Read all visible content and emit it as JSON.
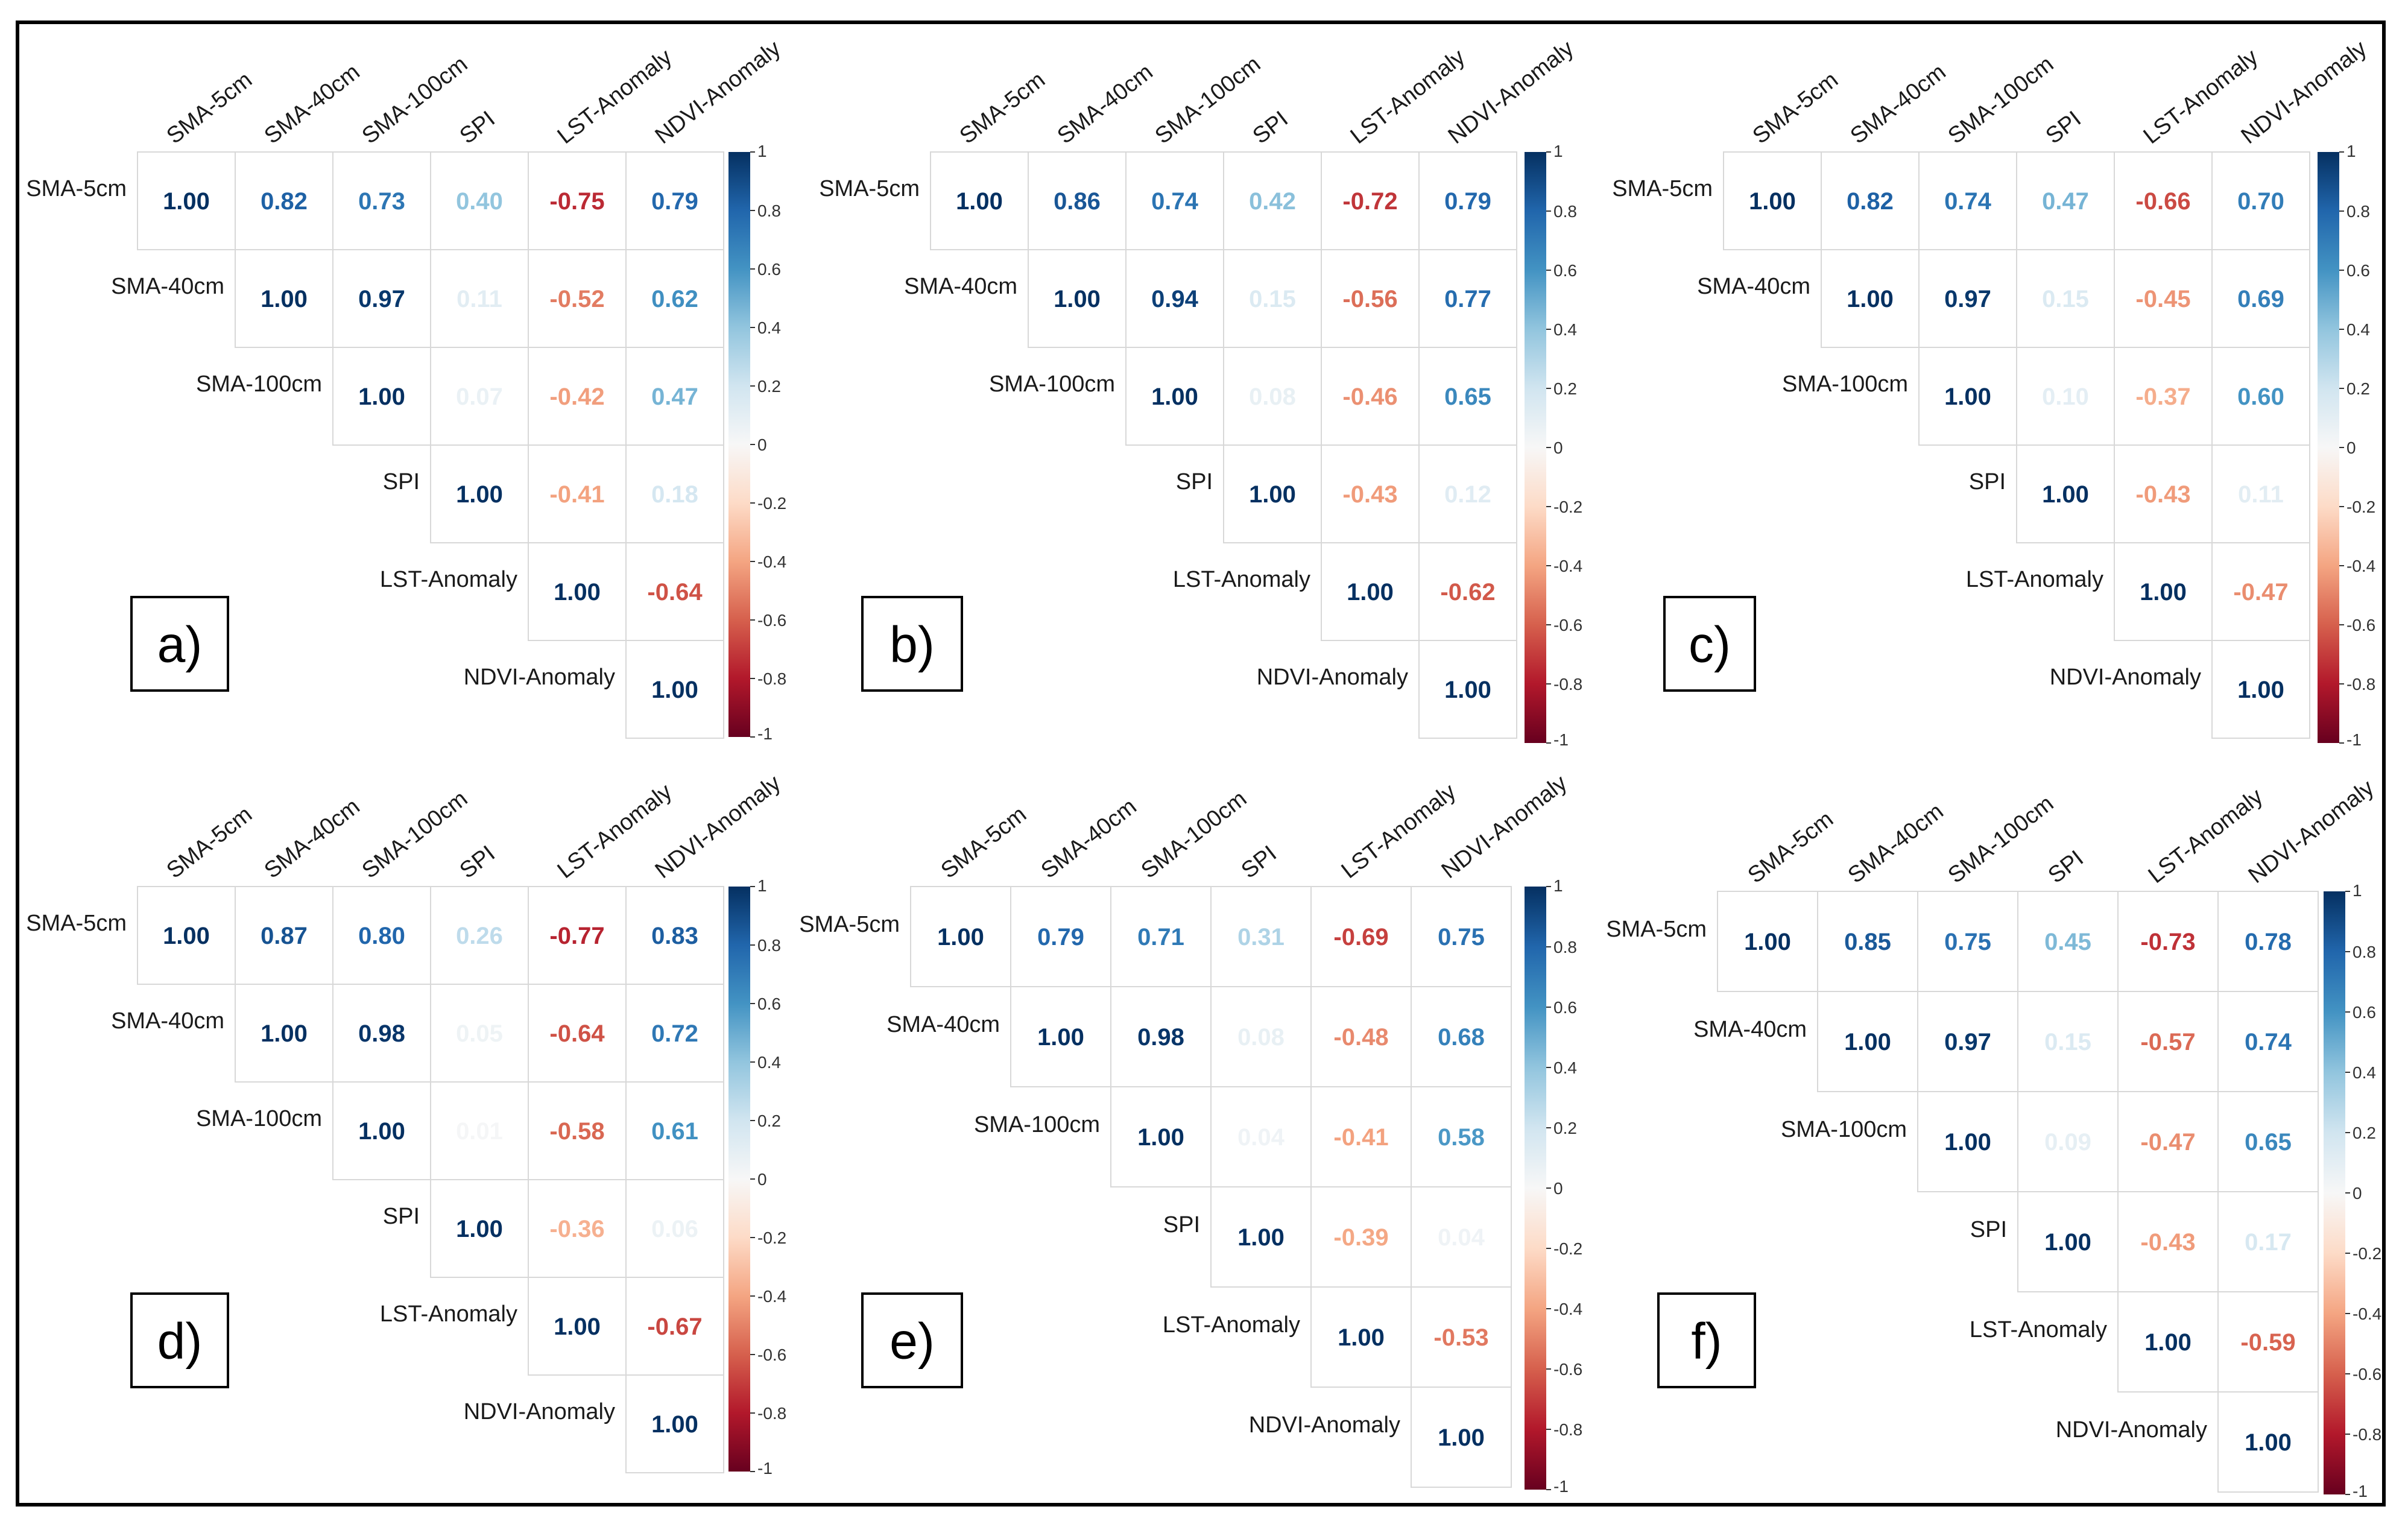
{
  "chart_data": [
    {
      "type": "heatmap",
      "panel": "a)",
      "variables": [
        "SMA-5cm",
        "SMA-40cm",
        "SMA-100cm",
        "SPI",
        "LST-Anomaly",
        "NDVI-Anomaly"
      ],
      "values": [
        [
          "1.00",
          "0.82",
          "0.73",
          "0.40",
          "-0.75",
          "0.79"
        ],
        [
          "1.00",
          "0.97",
          "0.11",
          "-0.52",
          "0.62"
        ],
        [
          "1.00",
          "0.07",
          "-0.42",
          "0.47"
        ],
        [
          "1.00",
          "-0.41",
          "0.18"
        ],
        [
          "1.00",
          "-0.64"
        ],
        [
          "1.00"
        ]
      ],
      "colorbar": {
        "range": [
          -1,
          1
        ],
        "ticks": [
          "1",
          "0.8",
          "0.6",
          "0.4",
          "0.2",
          "0",
          "-0.2",
          "-0.4",
          "-0.6",
          "-0.8",
          "-1"
        ]
      }
    },
    {
      "type": "heatmap",
      "panel": "b)",
      "variables": [
        "SMA-5cm",
        "SMA-40cm",
        "SMA-100cm",
        "SPI",
        "LST-Anomaly",
        "NDVI-Anomaly"
      ],
      "values": [
        [
          "1.00",
          "0.86",
          "0.74",
          "0.42",
          "-0.72",
          "0.79"
        ],
        [
          "1.00",
          "0.94",
          "0.15",
          "-0.56",
          "0.77"
        ],
        [
          "1.00",
          "0.08",
          "-0.46",
          "0.65"
        ],
        [
          "1.00",
          "-0.43",
          "0.12"
        ],
        [
          "1.00",
          "-0.62"
        ],
        [
          "1.00"
        ]
      ],
      "colorbar": {
        "range": [
          -1,
          1
        ],
        "ticks": [
          "1",
          "0.8",
          "0.6",
          "0.4",
          "0.2",
          "0",
          "-0.2",
          "-0.4",
          "-0.6",
          "-0.8",
          "-1"
        ]
      }
    },
    {
      "type": "heatmap",
      "panel": "c)",
      "variables": [
        "SMA-5cm",
        "SMA-40cm",
        "SMA-100cm",
        "SPI",
        "LST-Anomaly",
        "NDVI-Anomaly"
      ],
      "values": [
        [
          "1.00",
          "0.82",
          "0.74",
          "0.47",
          "-0.66",
          "0.70"
        ],
        [
          "1.00",
          "0.97",
          "0.15",
          "-0.45",
          "0.69"
        ],
        [
          "1.00",
          "0.10",
          "-0.37",
          "0.60"
        ],
        [
          "1.00",
          "-0.43",
          "0.11"
        ],
        [
          "1.00",
          "-0.47"
        ],
        [
          "1.00"
        ]
      ],
      "colorbar": {
        "range": [
          -1,
          1
        ],
        "ticks": [
          "1",
          "0.8",
          "0.6",
          "0.4",
          "0.2",
          "0",
          "-0.2",
          "-0.4",
          "-0.6",
          "-0.8",
          "-1"
        ]
      }
    },
    {
      "type": "heatmap",
      "panel": "d)",
      "variables": [
        "SMA-5cm",
        "SMA-40cm",
        "SMA-100cm",
        "SPI",
        "LST-Anomaly",
        "NDVI-Anomaly"
      ],
      "values": [
        [
          "1.00",
          "0.87",
          "0.80",
          "0.26",
          "-0.77",
          "0.83"
        ],
        [
          "1.00",
          "0.98",
          "0.05",
          "-0.64",
          "0.72"
        ],
        [
          "1.00",
          "0.01",
          "-0.58",
          "0.61"
        ],
        [
          "1.00",
          "-0.36",
          "0.06"
        ],
        [
          "1.00",
          "-0.67"
        ],
        [
          "1.00"
        ]
      ],
      "colorbar": {
        "range": [
          -1,
          1
        ],
        "ticks": [
          "1",
          "0.8",
          "0.6",
          "0.4",
          "0.2",
          "0",
          "-0.2",
          "-0.4",
          "-0.6",
          "-0.8",
          "-1"
        ]
      }
    },
    {
      "type": "heatmap",
      "panel": "e)",
      "variables": [
        "SMA-5cm",
        "SMA-40cm",
        "SMA-100cm",
        "SPI",
        "LST-Anomaly",
        "NDVI-Anomaly"
      ],
      "values": [
        [
          "1.00",
          "0.79",
          "0.71",
          "0.31",
          "-0.69",
          "0.75"
        ],
        [
          "1.00",
          "0.98",
          "0.08",
          "-0.48",
          "0.68"
        ],
        [
          "1.00",
          "0.04",
          "-0.41",
          "0.58"
        ],
        [
          "1.00",
          "-0.39",
          "0.04"
        ],
        [
          "1.00",
          "-0.53"
        ],
        [
          "1.00"
        ]
      ],
      "colorbar": {
        "range": [
          -1,
          1
        ],
        "ticks": [
          "1",
          "0.8",
          "0.6",
          "0.4",
          "0.2",
          "0",
          "-0.2",
          "-0.4",
          "-0.6",
          "-0.8",
          "-1"
        ]
      }
    },
    {
      "type": "heatmap",
      "panel": "f)",
      "variables": [
        "SMA-5cm",
        "SMA-40cm",
        "SMA-100cm",
        "SPI",
        "LST-Anomaly",
        "NDVI-Anomaly"
      ],
      "values": [
        [
          "1.00",
          "0.85",
          "0.75",
          "0.45",
          "-0.73",
          "0.78"
        ],
        [
          "1.00",
          "0.97",
          "0.15",
          "-0.57",
          "0.74"
        ],
        [
          "1.00",
          "0.09",
          "-0.47",
          "0.65"
        ],
        [
          "1.00",
          "-0.43",
          "0.17"
        ],
        [
          "1.00",
          "-0.59"
        ],
        [
          "1.00"
        ]
      ],
      "colorbar": {
        "range": [
          -1,
          1
        ],
        "ticks": [
          "1",
          "0.8",
          "0.6",
          "0.4",
          "0.2",
          "0",
          "-0.2",
          "-0.4",
          "-0.6",
          "-0.8",
          "-1"
        ]
      }
    }
  ]
}
